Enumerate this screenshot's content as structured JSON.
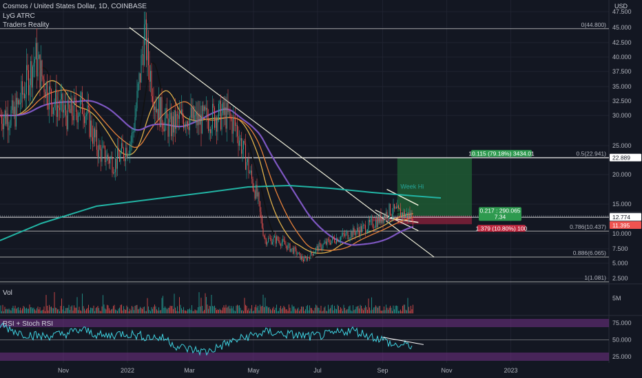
{
  "header": {
    "symbol": "Cosmos / United States Dollar, 1D, COINBASE",
    "ind1": "LyG ATRC",
    "ind2": "Traders Reality",
    "vol_label": "Vol",
    "rsi_label": "RSI + Stoch RSI"
  },
  "colors": {
    "bg": "#131722",
    "up": "#26a69a",
    "down": "#ef5350",
    "white_line": "#f2f2dc",
    "ma200": "#22b5a5",
    "ma100": "#7e57c2",
    "ma_orange": "#e8823a",
    "ma_yellow": "#e0b04a",
    "rsi": "#3fd2e0",
    "band": "#6a2f7f",
    "green_box": "#1e5a32",
    "red_box": "#7a1f37"
  },
  "chart_data": {
    "type": "candlestick",
    "title": "Cosmos / United States Dollar, 1D, COINBASE",
    "y_unit": "USD",
    "y_scale": "log",
    "y_ticks": [
      "47.500",
      "45.000",
      "42.500",
      "40.000",
      "37.500",
      "35.000",
      "32.500",
      "30.000",
      "25.000",
      "20.000",
      "15.000",
      "10.000",
      "7.500",
      "5.000",
      "2.500"
    ],
    "x_ticks": [
      "Nov",
      "2022",
      "Mar",
      "May",
      "Jul",
      "Sep",
      "Nov",
      "2023"
    ],
    "price_path": [
      [
        "2021-09-15",
        30
      ],
      [
        "2021-10-05",
        40
      ],
      [
        "2021-10-20",
        33
      ],
      [
        "2021-11-05",
        30
      ],
      [
        "2021-11-20",
        32
      ],
      [
        "2021-12-05",
        24
      ],
      [
        "2021-12-20",
        22
      ],
      [
        "2022-01-05",
        26
      ],
      [
        "2022-01-17",
        44
      ],
      [
        "2022-01-28",
        32
      ],
      [
        "2022-02-10",
        28
      ],
      [
        "2022-02-25",
        30
      ],
      [
        "2022-03-10",
        29
      ],
      [
        "2022-03-25",
        30
      ],
      [
        "2022-04-05",
        30
      ],
      [
        "2022-04-15",
        28
      ],
      [
        "2022-04-25",
        22
      ],
      [
        "2022-05-05",
        16
      ],
      [
        "2022-05-12",
        9
      ],
      [
        "2022-05-25",
        9
      ],
      [
        "2022-06-10",
        7
      ],
      [
        "2022-06-18",
        5.5
      ],
      [
        "2022-06-30",
        7.5
      ],
      [
        "2022-07-15",
        9
      ],
      [
        "2022-08-01",
        10
      ],
      [
        "2022-08-15",
        11
      ],
      [
        "2022-08-30",
        12.5
      ],
      [
        "2022-09-08",
        14
      ],
      [
        "2022-09-20",
        13.3
      ],
      [
        "2022-09-30",
        12.99
      ]
    ],
    "levels": [
      {
        "label": "0(44.800)",
        "value": 44.8
      },
      {
        "label": "0.5(22.941)",
        "value": 22.941
      },
      {
        "label": "0.786(10.437)",
        "value": 10.437
      },
      {
        "label": "0.886(6.065)",
        "value": 6.065
      },
      {
        "label": "1(1.081)",
        "value": 1.081
      }
    ],
    "price_tags": [
      {
        "value": "22.889",
        "color": "#ffffff",
        "text_color": "#131722"
      },
      {
        "value": "12.991",
        "sub": "04:25:17",
        "color": "#363a45",
        "text_color": "#d1d4dc"
      },
      {
        "value": "12.774",
        "color": "#ffffff",
        "text_color": "#131722"
      },
      {
        "value": "11.395",
        "color": "#ef5350",
        "text_color": "#ffffff"
      }
    ],
    "position": {
      "target_text": "10.115 (79.18%) 3434.01",
      "entry_text": "0.217 : 290.065",
      "entry_sub": "7.34",
      "stop_text": "1.379 (10.80%) 100"
    },
    "annotations": [
      "Week Hi"
    ],
    "volume_tick": "5M",
    "rsi": {
      "ticks": [
        "75.000",
        "50.000",
        "25.000"
      ],
      "path": [
        [
          0,
          72
        ],
        [
          0.05,
          60
        ],
        [
          0.1,
          55
        ],
        [
          0.15,
          58
        ],
        [
          0.2,
          65
        ],
        [
          0.25,
          55
        ],
        [
          0.3,
          60
        ],
        [
          0.35,
          55
        ],
        [
          0.4,
          52
        ],
        [
          0.43,
          40
        ],
        [
          0.46,
          36
        ],
        [
          0.5,
          32
        ],
        [
          0.55,
          45
        ],
        [
          0.6,
          55
        ],
        [
          0.65,
          62
        ],
        [
          0.7,
          58
        ],
        [
          0.75,
          55
        ],
        [
          0.8,
          58
        ],
        [
          0.85,
          65
        ],
        [
          0.9,
          55
        ],
        [
          0.93,
          50
        ],
        [
          0.95,
          42
        ]
      ]
    }
  }
}
